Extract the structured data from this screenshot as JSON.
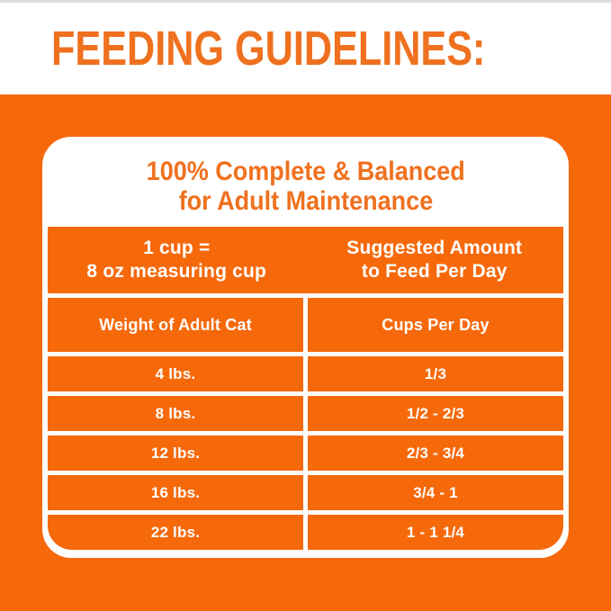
{
  "page": {
    "title": "FEEDING GUIDELINES:"
  },
  "colors": {
    "orange": "#F6690B",
    "orange_text": "#EF711F",
    "white": "#FFFFFF"
  },
  "card": {
    "heading": {
      "line1": "100% Complete & Balanced",
      "line2": "for Adult Maintenance"
    },
    "table": {
      "cup_note": {
        "line1": "1 cup =",
        "line2": "8 oz measuring cup"
      },
      "amount_note": {
        "line1": "Suggested Amount",
        "line2": "to Feed Per Day"
      },
      "columns": [
        "Weight of Adult Cat",
        "Cups Per Day"
      ],
      "rows": [
        {
          "weight": "4 lbs.",
          "cups": "1/3"
        },
        {
          "weight": "8 lbs.",
          "cups": "1/2 - 2/3"
        },
        {
          "weight": "12 lbs.",
          "cups": "2/3 - 3/4"
        },
        {
          "weight": "16 lbs.",
          "cups": "3/4 - 1"
        },
        {
          "weight": "22 lbs.",
          "cups": "1 - 1 1/4"
        }
      ]
    }
  }
}
